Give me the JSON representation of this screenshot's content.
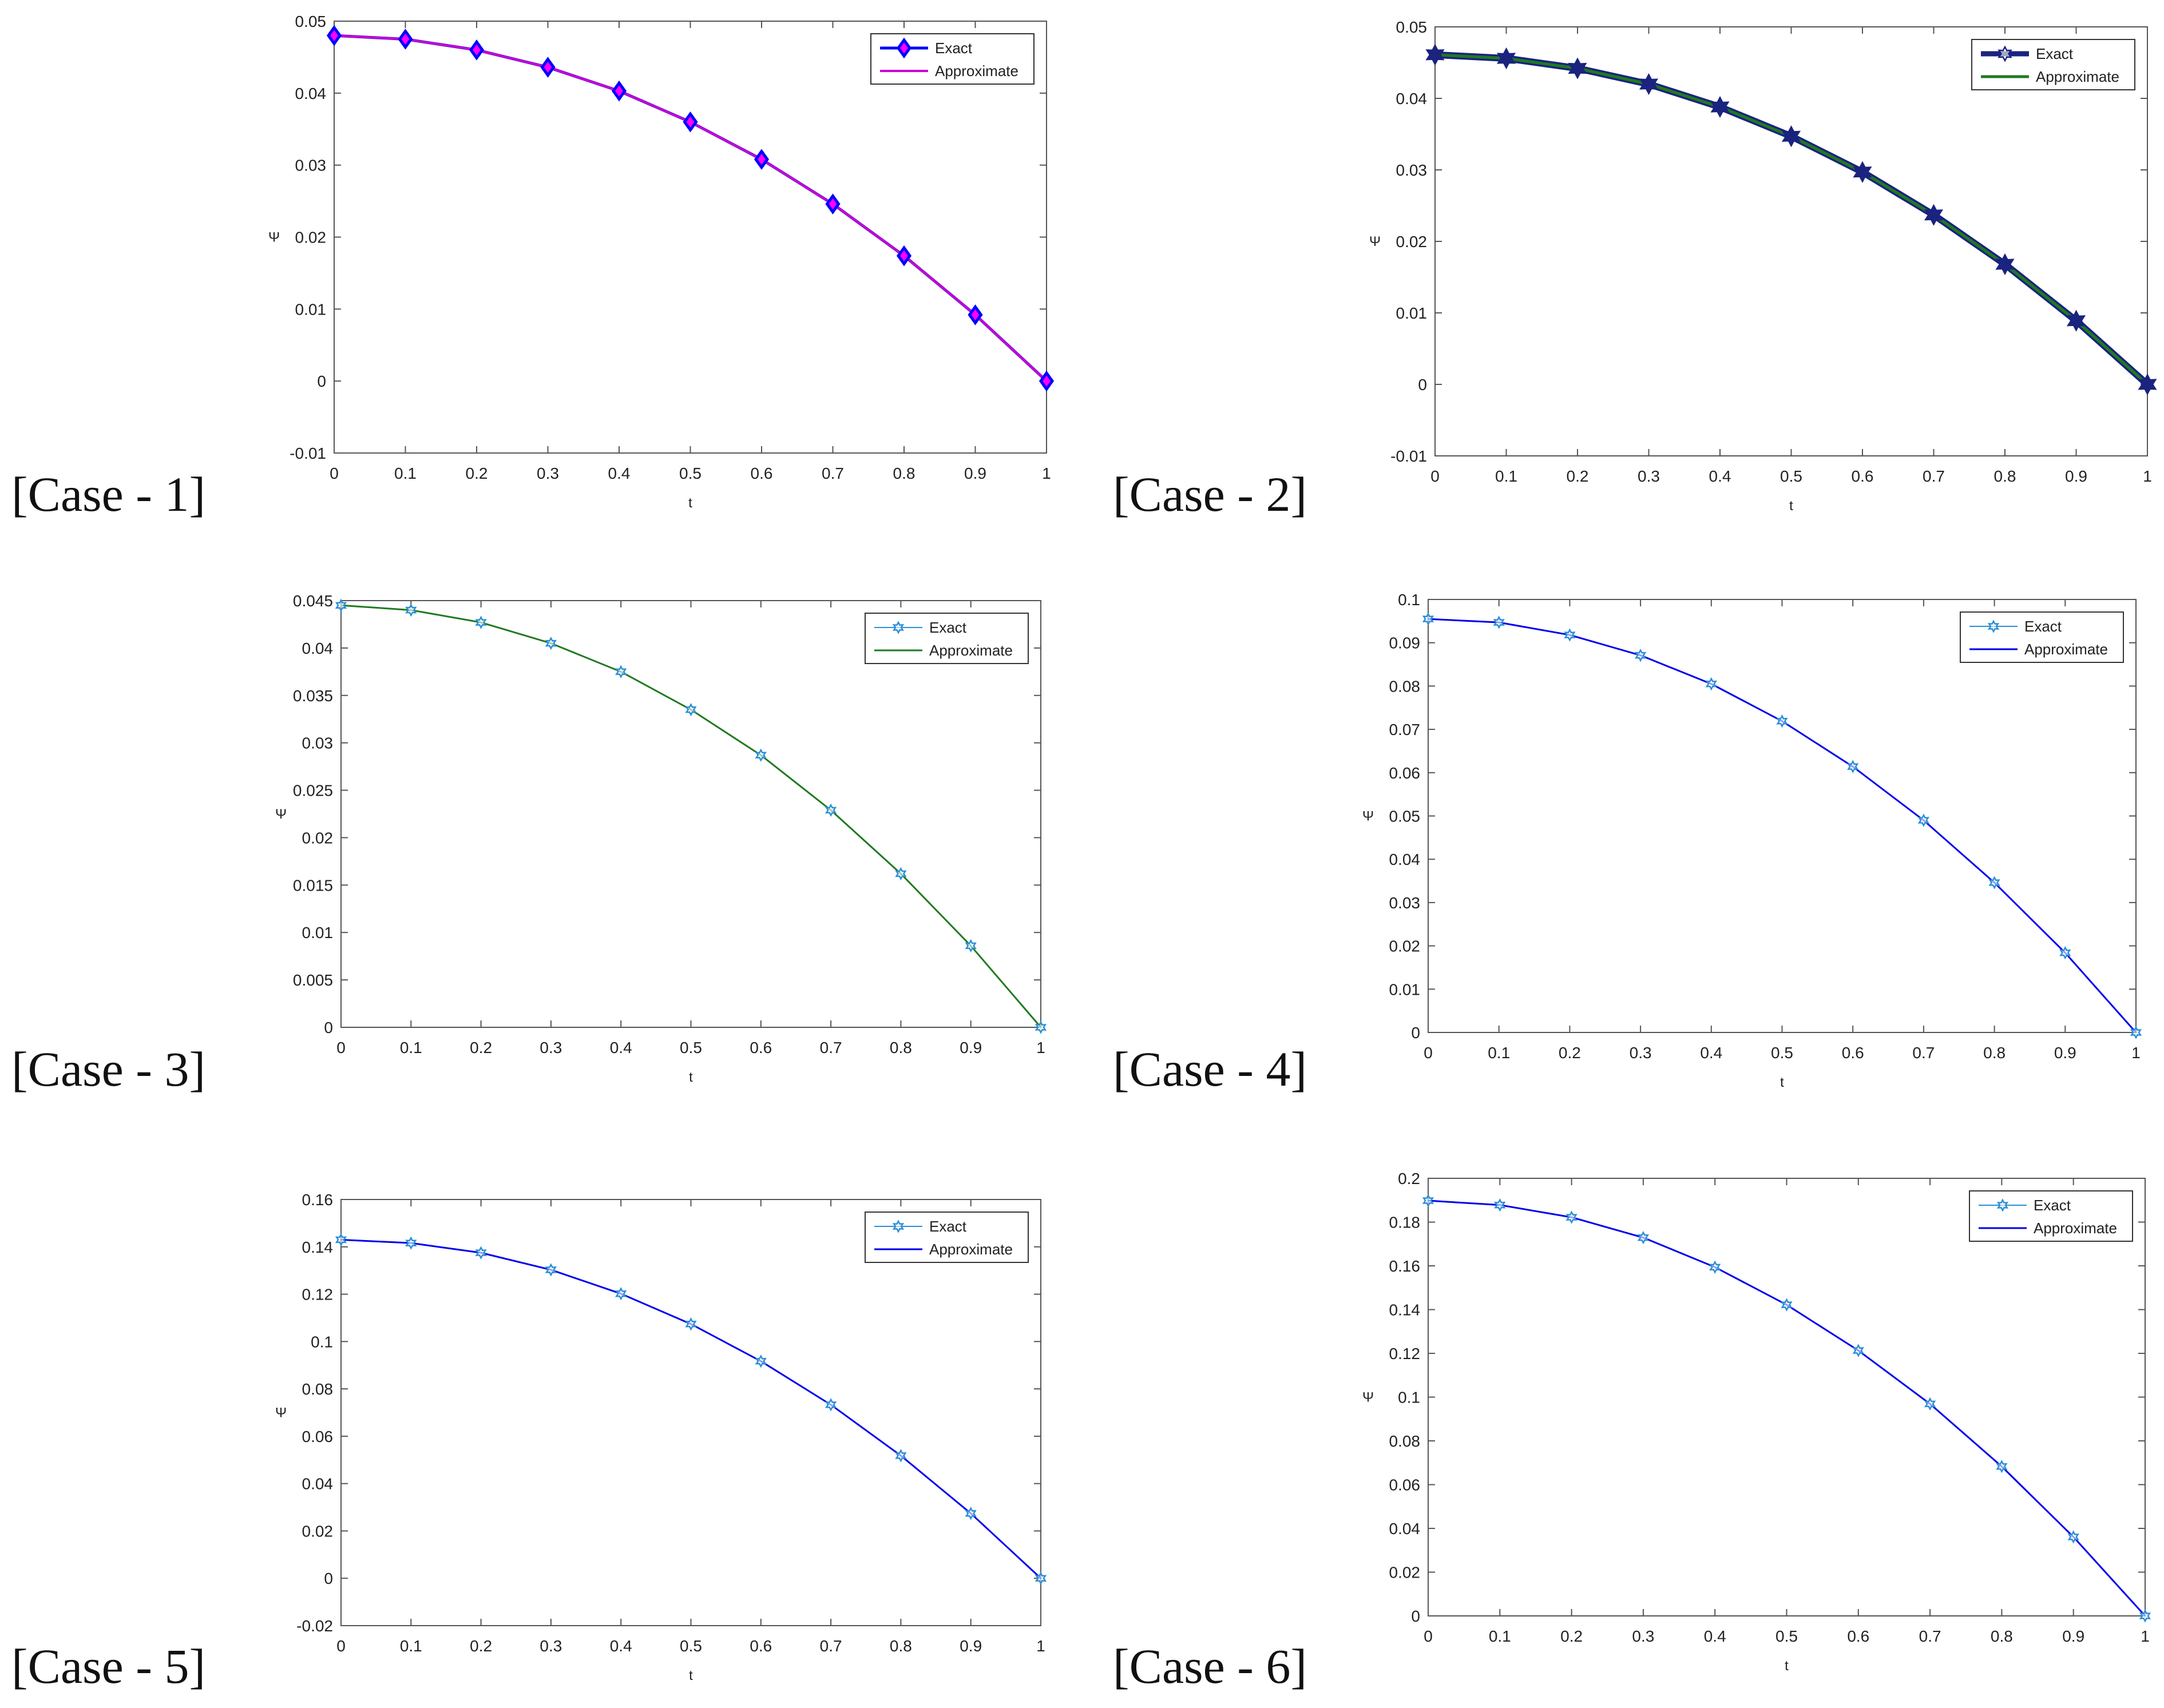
{
  "figure": {
    "description_labels": [
      "[Case - 1]",
      "[Case - 2]",
      "[Case - 3]",
      "[Case - 4]",
      "[Case - 5]",
      "[Case - 6]"
    ]
  },
  "chart_data": [
    {
      "type": "line",
      "case_label": "[Case - 1]",
      "xlabel": "t",
      "ylabel": "Ψ",
      "x": [
        0,
        0.1,
        0.2,
        0.3,
        0.4,
        0.5,
        0.6,
        0.7,
        0.8,
        0.9,
        1
      ],
      "xlim": [
        0,
        1
      ],
      "ylim": [
        -0.01,
        0.05
      ],
      "xticks": [
        0,
        0.1,
        0.2,
        0.3,
        0.4,
        0.5,
        0.6,
        0.7,
        0.8,
        0.9,
        1
      ],
      "xtick_labels": [
        "0",
        "0.1",
        "0.2",
        "0.3",
        "0.4",
        "0.5",
        "0.6",
        "0.7",
        "0.8",
        "0.9",
        "1"
      ],
      "yticks": [
        -0.01,
        0,
        0.01,
        0.02,
        0.03,
        0.04,
        0.05
      ],
      "ytick_labels": [
        "-0.01",
        "0",
        "0.01",
        "0.02",
        "0.03",
        "0.04",
        "0.05"
      ],
      "legend_position": "top-right",
      "series": [
        {
          "name": "Exact",
          "values": [
            0.048,
            0.0475,
            0.046,
            0.0436,
            0.0403,
            0.036,
            0.0308,
            0.0246,
            0.0174,
            0.0092,
            0
          ],
          "color": "#0000ff",
          "marker": "diamond",
          "line_width": 5,
          "marker_size": 10
        },
        {
          "name": "Approximate",
          "values": [
            0.048,
            0.0475,
            0.046,
            0.0436,
            0.0403,
            0.036,
            0.0308,
            0.0246,
            0.0174,
            0.0092,
            0
          ],
          "color": "#cc00cc",
          "marker": "none",
          "line_width": 4
        }
      ]
    },
    {
      "type": "line",
      "case_label": "[Case - 2]",
      "xlabel": "t",
      "ylabel": "Ψ",
      "x": [
        0,
        0.1,
        0.2,
        0.3,
        0.4,
        0.5,
        0.6,
        0.7,
        0.8,
        0.9,
        1
      ],
      "xlim": [
        0,
        1
      ],
      "ylim": [
        -0.01,
        0.05
      ],
      "xticks": [
        0,
        0.1,
        0.2,
        0.3,
        0.4,
        0.5,
        0.6,
        0.7,
        0.8,
        0.9,
        1
      ],
      "xtick_labels": [
        "0",
        "0.1",
        "0.2",
        "0.3",
        "0.4",
        "0.5",
        "0.6",
        "0.7",
        "0.8",
        "0.9",
        "1"
      ],
      "yticks": [
        -0.01,
        0,
        0.01,
        0.02,
        0.03,
        0.04,
        0.05
      ],
      "ytick_labels": [
        "-0.01",
        "0",
        "0.01",
        "0.02",
        "0.03",
        "0.04",
        "0.05"
      ],
      "legend_position": "top-right",
      "series": [
        {
          "name": "Exact",
          "values": [
            0.0461,
            0.0456,
            0.0442,
            0.042,
            0.0388,
            0.0347,
            0.0297,
            0.0237,
            0.0168,
            0.0089,
            0
          ],
          "color": "#1a237e",
          "marker": "hexagram",
          "line_width": 12,
          "marker_size": 17
        },
        {
          "name": "Approximate",
          "values": [
            0.0461,
            0.0456,
            0.0442,
            0.042,
            0.0388,
            0.0347,
            0.0297,
            0.0237,
            0.0168,
            0.0089,
            0
          ],
          "color": "#1f7a1f",
          "marker": "none",
          "line_width": 5
        }
      ]
    },
    {
      "type": "line",
      "case_label": "[Case - 3]",
      "xlabel": "t",
      "ylabel": "Ψ",
      "x": [
        0,
        0.1,
        0.2,
        0.3,
        0.4,
        0.5,
        0.6,
        0.7,
        0.8,
        0.9,
        1
      ],
      "xlim": [
        0,
        1
      ],
      "ylim": [
        0,
        0.045
      ],
      "xticks": [
        0,
        0.1,
        0.2,
        0.3,
        0.4,
        0.5,
        0.6,
        0.7,
        0.8,
        0.9,
        1
      ],
      "xtick_labels": [
        "0",
        "0.1",
        "0.2",
        "0.3",
        "0.4",
        "0.5",
        "0.6",
        "0.7",
        "0.8",
        "0.9",
        "1"
      ],
      "yticks": [
        0,
        0.005,
        0.01,
        0.015,
        0.02,
        0.025,
        0.03,
        0.035,
        0.04,
        0.045
      ],
      "ytick_labels": [
        "0",
        "0.005",
        "0.01",
        "0.015",
        "0.02",
        "0.025",
        "0.03",
        "0.035",
        "0.04",
        "0.045"
      ],
      "legend_position": "top-right",
      "series": [
        {
          "name": "Exact",
          "values": [
            0.0445,
            0.044,
            0.0427,
            0.0405,
            0.0375,
            0.0335,
            0.0287,
            0.0229,
            0.0162,
            0.0086,
            0
          ],
          "color": "#2b8fd6",
          "marker": "hexagram",
          "line_width": 2,
          "marker_size": 9
        },
        {
          "name": "Approximate",
          "values": [
            0.0445,
            0.044,
            0.0427,
            0.0405,
            0.0375,
            0.0335,
            0.0287,
            0.0229,
            0.0162,
            0.0086,
            0
          ],
          "color": "#1f7a1f",
          "marker": "none",
          "line_width": 3
        }
      ]
    },
    {
      "type": "line",
      "case_label": "[Case - 4]",
      "xlabel": "t",
      "ylabel": "Ψ",
      "x": [
        0,
        0.1,
        0.2,
        0.3,
        0.4,
        0.5,
        0.6,
        0.7,
        0.8,
        0.9,
        1
      ],
      "xlim": [
        0,
        1
      ],
      "ylim": [
        0,
        0.1
      ],
      "xticks": [
        0,
        0.1,
        0.2,
        0.3,
        0.4,
        0.5,
        0.6,
        0.7,
        0.8,
        0.9,
        1
      ],
      "xtick_labels": [
        "0",
        "0.1",
        "0.2",
        "0.3",
        "0.4",
        "0.5",
        "0.6",
        "0.7",
        "0.8",
        "0.9",
        "1"
      ],
      "yticks": [
        0,
        0.01,
        0.02,
        0.03,
        0.04,
        0.05,
        0.06,
        0.07,
        0.08,
        0.09,
        0.1
      ],
      "ytick_labels": [
        "0",
        "0.01",
        "0.02",
        "0.03",
        "0.04",
        "0.05",
        "0.06",
        "0.07",
        "0.08",
        "0.09",
        "0.1"
      ],
      "legend_position": "top-right",
      "series": [
        {
          "name": "Exact",
          "values": [
            0.0955,
            0.0947,
            0.0918,
            0.0871,
            0.0805,
            0.0719,
            0.0614,
            0.049,
            0.0346,
            0.0184,
            0
          ],
          "color": "#2b8fd6",
          "marker": "hexagram",
          "line_width": 2,
          "marker_size": 9
        },
        {
          "name": "Approximate",
          "values": [
            0.0955,
            0.0947,
            0.0918,
            0.0871,
            0.0805,
            0.0719,
            0.0614,
            0.049,
            0.0346,
            0.0184,
            0
          ],
          "color": "#0000ee",
          "marker": "none",
          "line_width": 3
        }
      ]
    },
    {
      "type": "line",
      "case_label": "[Case - 5]",
      "xlabel": "t",
      "ylabel": "Ψ",
      "x": [
        0,
        0.1,
        0.2,
        0.3,
        0.4,
        0.5,
        0.6,
        0.7,
        0.8,
        0.9,
        1
      ],
      "xlim": [
        0,
        1
      ],
      "ylim": [
        -0.02,
        0.16
      ],
      "xticks": [
        0,
        0.1,
        0.2,
        0.3,
        0.4,
        0.5,
        0.6,
        0.7,
        0.8,
        0.9,
        1
      ],
      "xtick_labels": [
        "0",
        "0.1",
        "0.2",
        "0.3",
        "0.4",
        "0.5",
        "0.6",
        "0.7",
        "0.8",
        "0.9",
        "1"
      ],
      "yticks": [
        -0.02,
        0,
        0.02,
        0.04,
        0.06,
        0.08,
        0.1,
        0.12,
        0.14,
        0.16
      ],
      "ytick_labels": [
        "-0.02",
        "0",
        "0.02",
        "0.04",
        "0.06",
        "0.08",
        "0.1",
        "0.12",
        "0.14",
        "0.16"
      ],
      "legend_position": "top-right",
      "series": [
        {
          "name": "Exact",
          "values": [
            0.143,
            0.1416,
            0.1375,
            0.1303,
            0.1202,
            0.1074,
            0.0917,
            0.0733,
            0.0518,
            0.0274,
            0
          ],
          "color": "#2b8fd6",
          "marker": "hexagram",
          "line_width": 2,
          "marker_size": 9
        },
        {
          "name": "Approximate",
          "values": [
            0.143,
            0.1416,
            0.1375,
            0.1303,
            0.1202,
            0.1074,
            0.0917,
            0.0733,
            0.0518,
            0.0274,
            0
          ],
          "color": "#0000ee",
          "marker": "none",
          "line_width": 3
        }
      ]
    },
    {
      "type": "line",
      "case_label": "[Case - 6]",
      "xlabel": "t",
      "ylabel": "Ψ",
      "x": [
        0,
        0.1,
        0.2,
        0.3,
        0.4,
        0.5,
        0.6,
        0.7,
        0.8,
        0.9,
        1
      ],
      "xlim": [
        0,
        1
      ],
      "ylim": [
        0,
        0.2
      ],
      "xticks": [
        0,
        0.1,
        0.2,
        0.3,
        0.4,
        0.5,
        0.6,
        0.7,
        0.8,
        0.9,
        1
      ],
      "xtick_labels": [
        "0",
        "0.1",
        "0.2",
        "0.3",
        "0.4",
        "0.5",
        "0.6",
        "0.7",
        "0.8",
        "0.9",
        "1"
      ],
      "yticks": [
        0,
        0.02,
        0.04,
        0.06,
        0.08,
        0.1,
        0.12,
        0.14,
        0.16,
        0.18,
        0.2
      ],
      "ytick_labels": [
        "0",
        "0.02",
        "0.04",
        "0.06",
        "0.08",
        "0.1",
        "0.12",
        "0.14",
        "0.16",
        "0.18",
        "0.2"
      ],
      "legend_position": "top-right",
      "series": [
        {
          "name": "Exact",
          "values": [
            0.1898,
            0.1878,
            0.1822,
            0.1729,
            0.1594,
            0.1422,
            0.1213,
            0.0969,
            0.0683,
            0.0361,
            0
          ],
          "color": "#2b8fd6",
          "marker": "hexagram",
          "line_width": 2,
          "marker_size": 9
        },
        {
          "name": "Approximate",
          "values": [
            0.1898,
            0.1878,
            0.1822,
            0.1729,
            0.1594,
            0.1422,
            0.1213,
            0.0969,
            0.0683,
            0.0361,
            0
          ],
          "color": "#0000ee",
          "marker": "none",
          "line_width": 3
        }
      ]
    }
  ]
}
